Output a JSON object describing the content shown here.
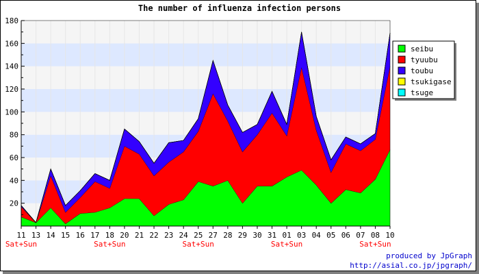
{
  "chart_data": {
    "type": "area",
    "title": "The number of influenza infection persons",
    "categories": [
      "11",
      "13",
      "14",
      "15",
      "16",
      "17",
      "18",
      "20",
      "21",
      "22",
      "23",
      "24",
      "25",
      "27",
      "28",
      "29",
      "30",
      "31",
      "01",
      "03",
      "04",
      "05",
      "06",
      "07",
      "08",
      "10"
    ],
    "weekend_marks": [
      {
        "index": 0,
        "label": "Sat+Sun"
      },
      {
        "index": 6,
        "label": "Sat+Sun"
      },
      {
        "index": 12,
        "label": "Sat+Sun"
      },
      {
        "index": 18,
        "label": "Sat+Sun"
      },
      {
        "index": 24,
        "label": "Sat+Sun"
      }
    ],
    "stacked": true,
    "ylim": [
      0,
      180
    ],
    "yticks": [
      20,
      40,
      60,
      80,
      100,
      120,
      140,
      160,
      180
    ],
    "grid": true,
    "legend_position": "right",
    "series": [
      {
        "name": "seibu",
        "color": "#00ff00",
        "values": [
          8,
          3,
          16,
          2,
          11,
          12,
          16,
          24,
          24,
          9,
          19,
          23,
          39,
          35,
          40,
          20,
          35,
          35,
          43,
          49,
          36,
          20,
          32,
          29,
          41,
          67
        ]
      },
      {
        "name": "tyuubu",
        "color": "#ff0000",
        "values": [
          9,
          0,
          28,
          10,
          14,
          27,
          17,
          46,
          39,
          35,
          37,
          42,
          44,
          81,
          52,
          45,
          45,
          64,
          36,
          90,
          48,
          27,
          40,
          37,
          35,
          73
        ]
      },
      {
        "name": "toubu",
        "color": "#3300ff",
        "values": [
          1,
          0,
          6,
          6,
          6,
          7,
          7,
          15,
          11,
          11,
          17,
          10,
          11,
          29,
          14,
          17,
          9,
          19,
          10,
          31,
          12,
          11,
          6,
          6,
          5,
          29
        ]
      },
      {
        "name": "tsukigase",
        "color": "#ffff00",
        "values": [
          0,
          0,
          0,
          0,
          0,
          0,
          0,
          0,
          0,
          0,
          0,
          0,
          0,
          0,
          0,
          0,
          0,
          0,
          0,
          0,
          0,
          0,
          0,
          0,
          0,
          0
        ]
      },
      {
        "name": "tsuge",
        "color": "#00ffff",
        "values": [
          0,
          0,
          0,
          0,
          0,
          0,
          0,
          0,
          0,
          0,
          0,
          0,
          0,
          0,
          0,
          0,
          0,
          0,
          0,
          0,
          0,
          0,
          0,
          0,
          0,
          0
        ]
      }
    ]
  },
  "credits": {
    "line1": "produced by JpGraph",
    "line2": "http://asial.co.jp/jpgraph/"
  }
}
